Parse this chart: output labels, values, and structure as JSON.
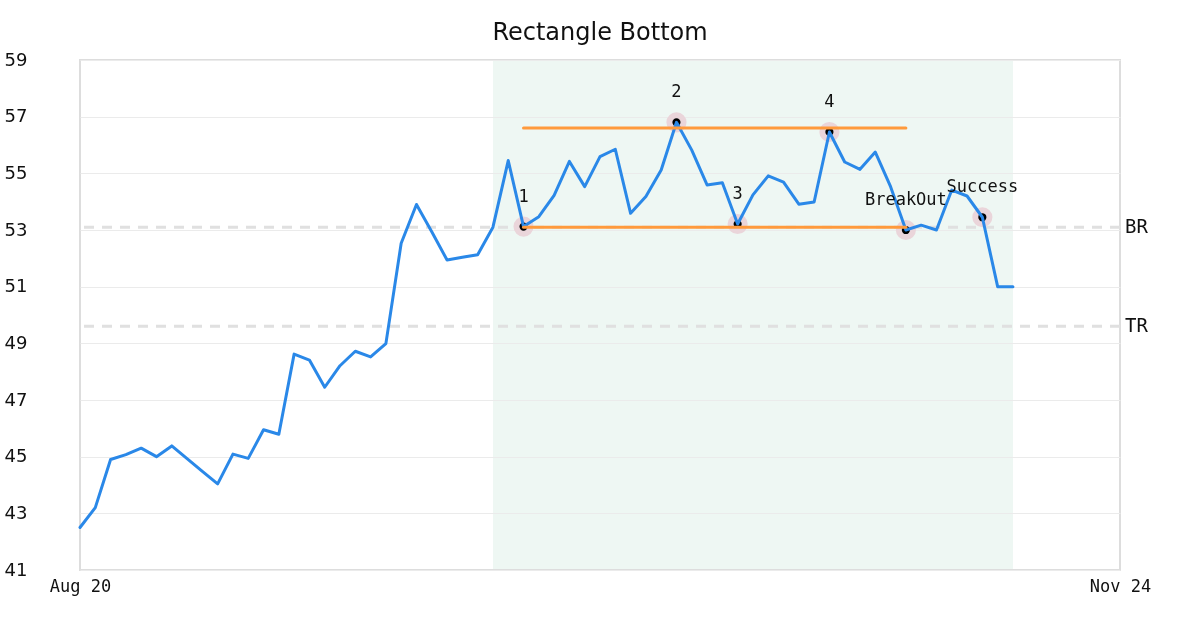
{
  "chart_data": {
    "type": "line",
    "title": "Rectangle Bottom",
    "categories": [
      "Aug 20",
      null,
      null,
      null,
      null,
      null,
      null,
      null,
      null,
      null,
      null,
      null,
      null,
      null,
      null,
      null,
      null,
      null,
      null,
      null,
      null,
      null,
      null,
      null,
      null,
      null,
      null,
      null,
      null,
      null,
      null,
      null,
      null,
      null,
      null,
      null,
      null,
      null,
      null,
      null,
      null,
      null,
      null,
      null,
      null,
      null,
      null,
      null,
      null,
      null,
      null,
      null,
      null,
      null,
      null,
      null,
      null,
      null,
      null,
      null,
      null,
      null,
      null,
      null,
      null,
      null,
      null,
      null,
      "Nov 24"
    ],
    "ylim": [
      41,
      59
    ],
    "yticks": [
      41,
      43,
      45,
      47,
      49,
      51,
      53,
      55,
      57,
      59
    ],
    "grid": "y",
    "series": [
      {
        "color": "#2a88e8",
        "values": [
          42.5,
          43.2,
          44.9,
          45.07,
          45.3,
          45.0,
          45.38,
          44.93,
          44.48,
          44.04,
          45.09,
          44.94,
          45.95,
          45.79,
          48.62,
          48.41,
          47.45,
          48.21,
          48.72,
          48.52,
          48.99,
          52.53,
          53.9,
          52.94,
          51.94,
          52.04,
          52.13,
          53.1,
          55.45,
          53.12,
          53.47,
          54.22,
          55.42,
          54.53,
          55.59,
          55.85,
          53.59,
          54.18,
          55.12,
          56.8,
          55.82,
          54.59,
          54.67,
          53.21,
          54.24,
          54.91,
          54.69,
          53.91,
          53.99,
          56.46,
          55.4,
          55.14,
          55.75,
          54.53,
          53.0,
          53.17,
          53.0,
          54.41,
          54.2,
          53.45,
          51.0,
          51.0,
          null,
          null,
          null,
          null,
          null,
          null,
          null
        ]
      },
      {
        "type": "line",
        "color": "#ff9a3c",
        "values": [
          null,
          null,
          null,
          null,
          null,
          null,
          null,
          null,
          null,
          null,
          null,
          null,
          null,
          null,
          null,
          null,
          null,
          null,
          null,
          null,
          null,
          null,
          null,
          null,
          null,
          null,
          null,
          null,
          null,
          56.6,
          56.6,
          56.6,
          56.6,
          56.6,
          56.6,
          56.6,
          56.6,
          56.6,
          56.6,
          56.6,
          56.6,
          56.6,
          56.6,
          56.6,
          56.6,
          56.6,
          56.6,
          56.6,
          56.6,
          56.6,
          56.6,
          56.6,
          56.6,
          56.6,
          56.6,
          null,
          null,
          null,
          null,
          null,
          null,
          null,
          null,
          null,
          null,
          null,
          null,
          null,
          null
        ]
      },
      {
        "type": "line",
        "color": "#ff9a3c",
        "values": [
          null,
          null,
          null,
          null,
          null,
          null,
          null,
          null,
          null,
          null,
          null,
          null,
          null,
          null,
          null,
          null,
          null,
          null,
          null,
          null,
          null,
          null,
          null,
          null,
          null,
          null,
          null,
          null,
          null,
          53.1,
          53.1,
          53.1,
          53.1,
          53.1,
          53.1,
          53.1,
          53.1,
          53.1,
          53.1,
          53.1,
          53.1,
          53.1,
          53.1,
          53.1,
          53.1,
          53.1,
          53.1,
          53.1,
          53.1,
          53.1,
          53.1,
          53.1,
          53.1,
          53.1,
          53.1,
          null,
          null,
          null,
          null,
          null,
          null,
          null,
          null,
          null,
          null,
          null,
          null,
          null,
          null
        ]
      },
      {
        "type": "scatter",
        "color": "#000000",
        "marker": "circle",
        "values": [
          null,
          null,
          null,
          null,
          null,
          null,
          null,
          null,
          null,
          null,
          null,
          null,
          null,
          null,
          null,
          null,
          null,
          null,
          null,
          null,
          null,
          null,
          null,
          null,
          null,
          null,
          null,
          null,
          null,
          53.12,
          null,
          null,
          null,
          null,
          null,
          null,
          null,
          null,
          null,
          56.8,
          null,
          null,
          null,
          53.21,
          null,
          null,
          null,
          null,
          null,
          56.46,
          null,
          null,
          null,
          null,
          53.0,
          null,
          null,
          null,
          null,
          53.45,
          null,
          null,
          null,
          null,
          null,
          null,
          null,
          null,
          null
        ]
      }
    ],
    "ref_lines": [
      {
        "axis": "y",
        "value": 53.1,
        "label": "BR",
        "color": "#e0e0e0",
        "line_style": "dashed"
      },
      {
        "axis": "y",
        "value": 49.6,
        "label": "TR",
        "color": "#e0e0e0",
        "line_style": "dashed"
      }
    ],
    "annotations": [
      "1",
      "2",
      "3",
      "4",
      "BreakOut",
      "Success"
    ]
  }
}
